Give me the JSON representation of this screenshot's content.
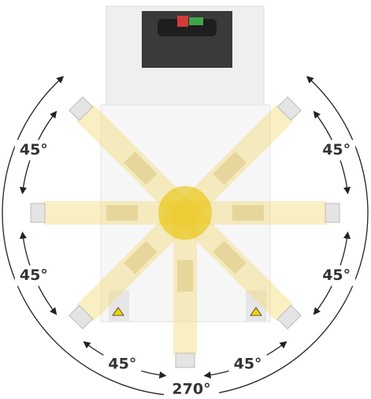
{
  "annotations": {
    "steps": [
      "45°",
      "45°",
      "45°",
      "45°",
      "45°",
      "45°"
    ],
    "total": "270°"
  }
}
